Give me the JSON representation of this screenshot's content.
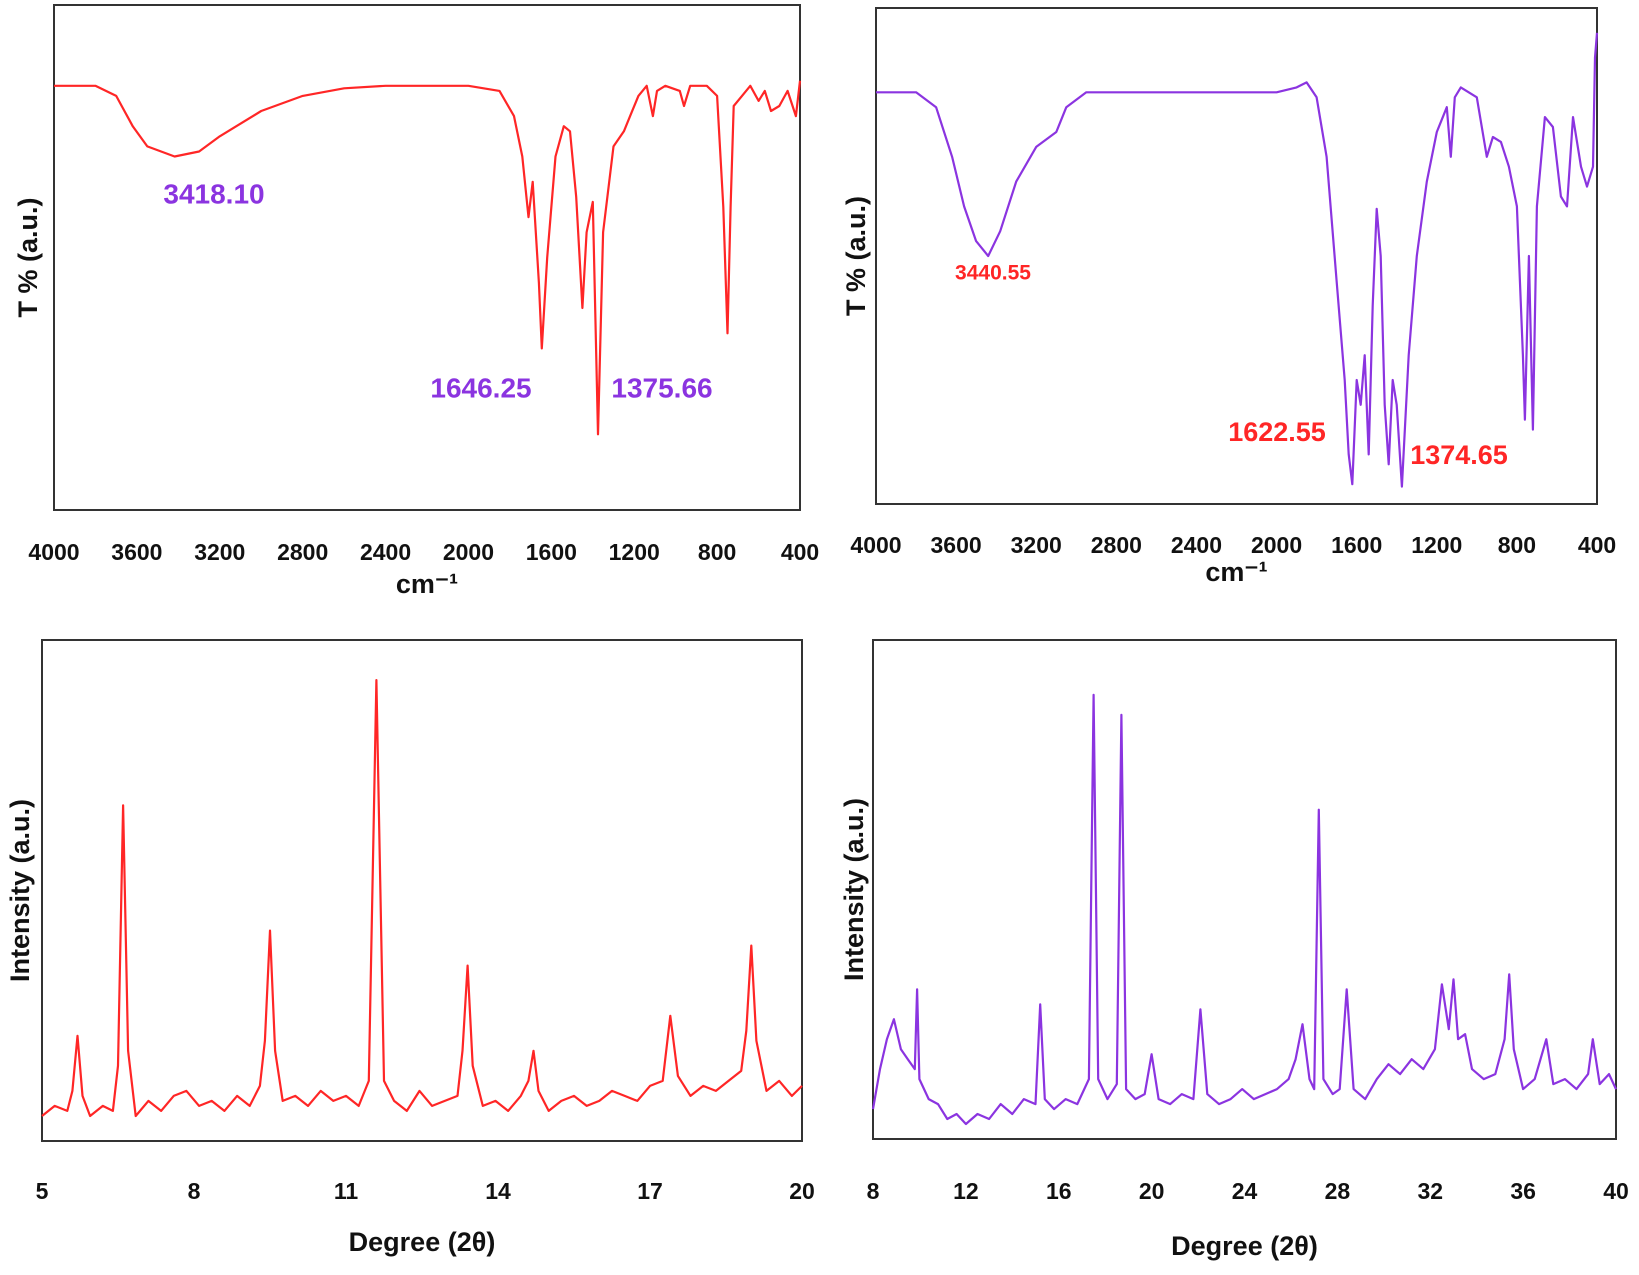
{
  "chart_data": [
    {
      "type": "line",
      "xlabel": "cm⁻¹",
      "ylabel": "T % (a.u.)",
      "color": "#ff2626",
      "annotation_color": "#8b34e0",
      "xlim": [
        4000,
        400
      ],
      "xticks": [
        4000,
        3600,
        3200,
        2800,
        2400,
        2000,
        1600,
        1200,
        800,
        400
      ],
      "ylim": [
        0,
        100
      ],
      "annotations": [
        "3418.10",
        "1646.25",
        "1375.66"
      ],
      "x": [
        4000,
        3800,
        3700,
        3620,
        3550,
        3418,
        3300,
        3200,
        3000,
        2800,
        2600,
        2400,
        2000,
        1850,
        1780,
        1740,
        1710,
        1690,
        1660,
        1646,
        1620,
        1580,
        1540,
        1510,
        1480,
        1450,
        1430,
        1400,
        1375,
        1350,
        1300,
        1250,
        1220,
        1180,
        1140,
        1110,
        1090,
        1050,
        980,
        960,
        930,
        850,
        800,
        770,
        750,
        735,
        720,
        680,
        640,
        600,
        570,
        540,
        500,
        460,
        420,
        400
      ],
      "values": [
        84,
        84,
        82,
        76,
        72,
        70,
        71,
        74,
        79,
        82,
        83.5,
        84,
        84,
        83,
        78,
        70,
        58,
        65,
        45,
        32,
        50,
        70,
        76,
        75,
        62,
        40,
        55,
        61,
        15,
        55,
        72,
        75,
        78,
        82,
        84,
        78,
        83,
        84,
        83,
        80,
        84,
        84,
        82,
        60,
        35,
        60,
        80,
        82,
        84,
        81,
        83,
        79,
        80,
        83,
        78,
        85
      ]
    },
    {
      "type": "line",
      "xlabel": "cm⁻¹",
      "ylabel": "T % (a.u.)",
      "color": "#8b34e0",
      "annotation_color": "#ff2626",
      "xlim": [
        4000,
        400
      ],
      "xticks": [
        4000,
        3600,
        3200,
        2800,
        2400,
        2000,
        1600,
        1200,
        800,
        400
      ],
      "ylim": [
        0,
        100
      ],
      "annotations": [
        "3440.55",
        "1622.55",
        "1374.65"
      ],
      "x": [
        4000,
        3800,
        3700,
        3620,
        3560,
        3500,
        3440,
        3380,
        3300,
        3200,
        3100,
        3050,
        2950,
        2500,
        2000,
        1900,
        1850,
        1800,
        1750,
        1700,
        1660,
        1640,
        1622,
        1600,
        1580,
        1560,
        1540,
        1520,
        1500,
        1480,
        1460,
        1440,
        1420,
        1400,
        1374,
        1340,
        1300,
        1250,
        1200,
        1150,
        1130,
        1110,
        1080,
        1000,
        950,
        920,
        880,
        840,
        800,
        770,
        760,
        740,
        720,
        700,
        660,
        620,
        580,
        550,
        520,
        480,
        450,
        420,
        410,
        400
      ],
      "values": [
        83,
        83,
        80,
        70,
        60,
        53,
        50,
        55,
        65,
        72,
        75,
        80,
        83,
        83,
        83,
        84,
        85,
        82,
        70,
        45,
        25,
        10,
        4,
        25,
        20,
        30,
        10,
        40,
        59.5,
        50,
        20,
        8,
        25,
        20,
        3.5,
        30,
        50,
        65,
        75,
        80,
        70,
        82,
        84,
        82,
        70,
        74,
        73,
        68,
        60,
        30,
        17,
        50,
        15,
        60,
        78,
        76,
        62,
        60,
        78,
        68,
        64,
        68,
        90,
        95
      ]
    },
    {
      "type": "line",
      "xlabel": "Degree (2θ)",
      "ylabel": "Intensity (a.u.)",
      "color": "#ff2626",
      "xlim": [
        5,
        20
      ],
      "xticks": [
        5,
        8,
        11,
        14,
        17,
        20
      ],
      "ylim": [
        0,
        100
      ],
      "x": [
        5.0,
        5.25,
        5.5,
        5.6,
        5.7,
        5.8,
        5.95,
        6.2,
        6.4,
        6.5,
        6.6,
        6.7,
        6.85,
        7.1,
        7.35,
        7.6,
        7.85,
        8.1,
        8.35,
        8.6,
        8.85,
        9.1,
        9.3,
        9.4,
        9.5,
        9.6,
        9.75,
        10.0,
        10.25,
        10.5,
        10.75,
        11.0,
        11.25,
        11.45,
        11.6,
        11.75,
        11.95,
        12.2,
        12.45,
        12.7,
        12.95,
        13.2,
        13.3,
        13.4,
        13.5,
        13.7,
        13.95,
        14.2,
        14.45,
        14.6,
        14.7,
        14.8,
        15.0,
        15.25,
        15.5,
        15.75,
        16.0,
        16.25,
        16.5,
        16.75,
        17.0,
        17.25,
        17.4,
        17.55,
        17.8,
        18.05,
        18.3,
        18.55,
        18.8,
        18.9,
        19.0,
        19.1,
        19.3,
        19.55,
        19.8,
        20.0
      ],
      "values": [
        5,
        7,
        6,
        10,
        21,
        9,
        5,
        7,
        6,
        15,
        67,
        18,
        5,
        8,
        6,
        9,
        10,
        7,
        8,
        6,
        9,
        7,
        11,
        20,
        42,
        18,
        8,
        9,
        7,
        10,
        8,
        9,
        7,
        12,
        92,
        12,
        8,
        6,
        10,
        7,
        8,
        9,
        18,
        35,
        15,
        7,
        8,
        6,
        9,
        12,
        18,
        10,
        6,
        8,
        9,
        7,
        8,
        10,
        9,
        8,
        11,
        12,
        25,
        13,
        9,
        11,
        10,
        12,
        14,
        22,
        39,
        20,
        10,
        12,
        9,
        11
      ]
    },
    {
      "type": "line",
      "xlabel": "Degree (2θ)",
      "ylabel": "Intensity (a.u.)",
      "color": "#8b34e0",
      "xlim": [
        8,
        40
      ],
      "xticks": [
        8,
        12,
        16,
        20,
        24,
        28,
        32,
        36,
        40
      ],
      "ylim": [
        0,
        100
      ],
      "x": [
        8,
        8.3,
        8.6,
        8.9,
        9.2,
        9.5,
        9.8,
        9.9,
        10.0,
        10.4,
        10.8,
        11.2,
        11.6,
        12.0,
        12.5,
        13.0,
        13.5,
        14.0,
        14.5,
        15.0,
        15.2,
        15.4,
        15.8,
        16.3,
        16.8,
        17.3,
        17.5,
        17.7,
        18.1,
        18.5,
        18.7,
        18.9,
        19.3,
        19.7,
        20.0,
        20.3,
        20.8,
        21.3,
        21.8,
        22.1,
        22.4,
        22.9,
        23.4,
        23.9,
        24.4,
        24.9,
        25.4,
        25.9,
        26.2,
        26.5,
        26.8,
        27.0,
        27.2,
        27.4,
        27.8,
        28.1,
        28.4,
        28.7,
        29.2,
        29.7,
        30.2,
        30.7,
        31.2,
        31.7,
        32.2,
        32.5,
        32.8,
        33.0,
        33.2,
        33.5,
        33.8,
        34.3,
        34.8,
        35.2,
        35.4,
        35.6,
        36.0,
        36.5,
        37.0,
        37.3,
        37.8,
        38.3,
        38.8,
        39.0,
        39.3,
        39.7,
        40
      ],
      "values": [
        6,
        14,
        20,
        24,
        18,
        16,
        14,
        30,
        12,
        8,
        7,
        4,
        5,
        3,
        5,
        4,
        7,
        5,
        8,
        7,
        27,
        8,
        6,
        8,
        7,
        12,
        89,
        12,
        8,
        11,
        85,
        10,
        8,
        9,
        17,
        8,
        7,
        9,
        8,
        26,
        9,
        7,
        8,
        10,
        8,
        9,
        10,
        12,
        16,
        23,
        12,
        10,
        66,
        12,
        9,
        10,
        30,
        10,
        8,
        12,
        15,
        13,
        16,
        14,
        18,
        31,
        22,
        32,
        20,
        21,
        14,
        12,
        13,
        20,
        33,
        18,
        10,
        12,
        20,
        11,
        12,
        10,
        13,
        20,
        11,
        13,
        10
      ]
    }
  ]
}
